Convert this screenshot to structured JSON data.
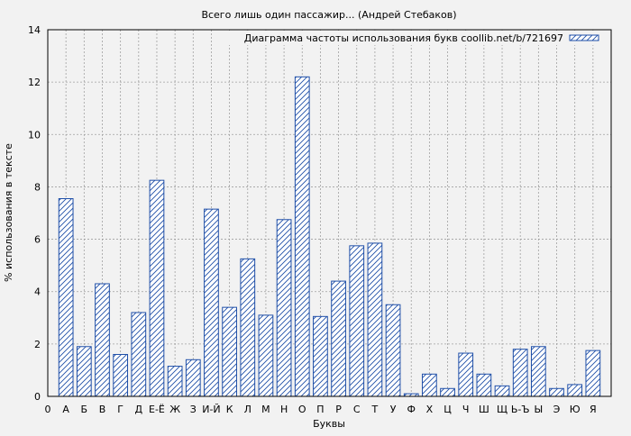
{
  "chart_data": {
    "type": "bar",
    "title": "Всего лишь один пассажир... (Андрей Стебаков)",
    "legend_label": "Диаграмма частоты использования букв coollib.net/b/721697",
    "legend_position": "top-right",
    "xlabel": "Буквы",
    "ylabel": "% использования в тексте",
    "ylim": [
      0,
      14
    ],
    "yticks": [
      0,
      2,
      4,
      6,
      8,
      10,
      12,
      14
    ],
    "grid": true,
    "colors": {
      "bar_stroke": "#1f4fa8",
      "bar_hatch": "#1f4fa8",
      "bar_fill": "#ffffff",
      "plot_bg": "#f2f2f2",
      "grid": "#a0a0a0"
    },
    "x_axis_labels": [
      "0",
      "А",
      "Б",
      "В",
      "Г",
      "Д",
      "Е-Ё",
      "Ж",
      "З",
      "И-Й",
      "К",
      "Л",
      "М",
      "Н",
      "О",
      "П",
      "Р",
      "С",
      "Т",
      "У",
      "Ф",
      "Х",
      "Ц",
      "Ч",
      "Ш",
      "Щ",
      "Ь-Ъ",
      "Ы",
      "Э",
      "Ю",
      "Я"
    ],
    "categories": [
      "А",
      "Б",
      "В",
      "Г",
      "Д",
      "Е-Ё",
      "Ж",
      "З",
      "И-Й",
      "К",
      "Л",
      "М",
      "Н",
      "О",
      "П",
      "Р",
      "С",
      "Т",
      "У",
      "Ф",
      "Х",
      "Ц",
      "Ч",
      "Ш",
      "Щ",
      "Ь-Ъ",
      "Ы",
      "Э",
      "Ю",
      "Я"
    ],
    "values": [
      7.55,
      1.9,
      4.3,
      1.6,
      3.2,
      8.25,
      1.15,
      1.4,
      7.15,
      3.4,
      5.25,
      3.1,
      6.75,
      12.2,
      3.05,
      4.4,
      5.75,
      5.85,
      3.5,
      0.1,
      0.85,
      0.3,
      1.65,
      0.85,
      0.4,
      1.8,
      1.9,
      0.3,
      0.45,
      1.75
    ]
  }
}
